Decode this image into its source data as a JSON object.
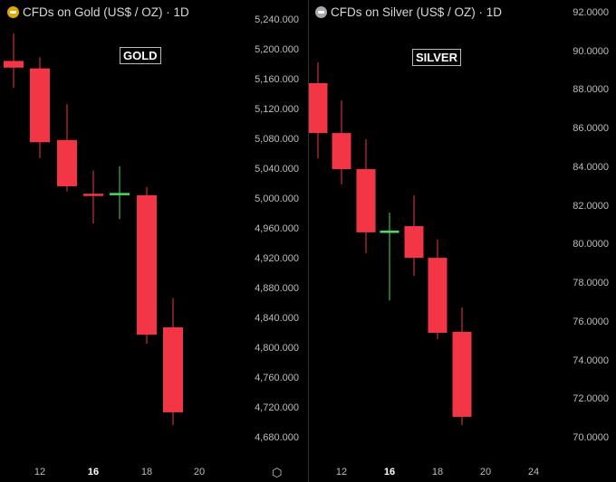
{
  "chart_data": [
    {
      "type": "candlestick",
      "title": "CFDs on Gold (US$ / OZ) · 1D",
      "label": "GOLD",
      "icon_color": "#e0a800",
      "ylim": [
        4680,
        5240
      ],
      "y_ticks": [
        "5,240.000",
        "5,200.000",
        "5,160.000",
        "5,120.000",
        "5,080.000",
        "5,040.000",
        "5,000.000",
        "4,960.000",
        "4,920.000",
        "4,880.000",
        "4,840.000",
        "4,800.000",
        "4,760.000",
        "4,720.000",
        "4,680.000"
      ],
      "x_ticks": [
        "12",
        "16",
        "18",
        "20"
      ],
      "x_ticks_bold": [
        "16"
      ],
      "candles": [
        {
          "day": 11,
          "open": 5185,
          "high": 5222,
          "low": 5149,
          "close": 5176
        },
        {
          "day": 12,
          "open": 5175,
          "high": 5190,
          "low": 5055,
          "close": 5076
        },
        {
          "day": 13,
          "open": 5079,
          "high": 5127,
          "low": 5010,
          "close": 5017
        },
        {
          "day": 16,
          "open": 5007,
          "high": 5038,
          "low": 4967,
          "close": 5005
        },
        {
          "day": 17,
          "open": 5007,
          "high": 5044,
          "low": 4973,
          "close": 5008
        },
        {
          "day": 18,
          "open": 5005,
          "high": 5016,
          "low": 4806,
          "close": 4818
        },
        {
          "day": 19,
          "open": 4828,
          "high": 4867,
          "low": 4697,
          "close": 4714
        }
      ]
    },
    {
      "type": "candlestick",
      "title": "CFDs on Silver (US$ / OZ) · 1D",
      "label": "SILVER",
      "icon_color": "#a8a8b0",
      "ylim": [
        70,
        92
      ],
      "y_ticks": [
        "92.0000",
        "90.0000",
        "88.0000",
        "86.0000",
        "84.0000",
        "82.0000",
        "80.0000",
        "78.0000",
        "76.0000",
        "74.0000",
        "72.0000",
        "70.0000"
      ],
      "x_ticks": [
        "12",
        "16",
        "18",
        "20",
        "24"
      ],
      "x_ticks_bold": [
        "16"
      ],
      "candles": [
        {
          "day": 11,
          "open": 88.35,
          "high": 89.43,
          "low": 84.46,
          "close": 85.77
        },
        {
          "day": 12,
          "open": 85.77,
          "high": 87.46,
          "low": 83.1,
          "close": 83.9
        },
        {
          "day": 13,
          "open": 83.9,
          "high": 85.45,
          "low": 79.55,
          "close": 80.63
        },
        {
          "day": 16,
          "open": 80.6,
          "high": 81.65,
          "low": 77.1,
          "close": 80.72
        },
        {
          "day": 17,
          "open": 80.95,
          "high": 82.54,
          "low": 78.38,
          "close": 79.31
        },
        {
          "day": 18,
          "open": 79.31,
          "high": 80.25,
          "low": 75.1,
          "close": 75.43
        },
        {
          "day": 19,
          "open": 75.48,
          "high": 76.74,
          "low": 70.65,
          "close": 71.08
        }
      ]
    }
  ],
  "colors": {
    "up": "#4cdb5a",
    "down": "#f23645"
  },
  "settings_icon": "hexagon-settings-icon"
}
